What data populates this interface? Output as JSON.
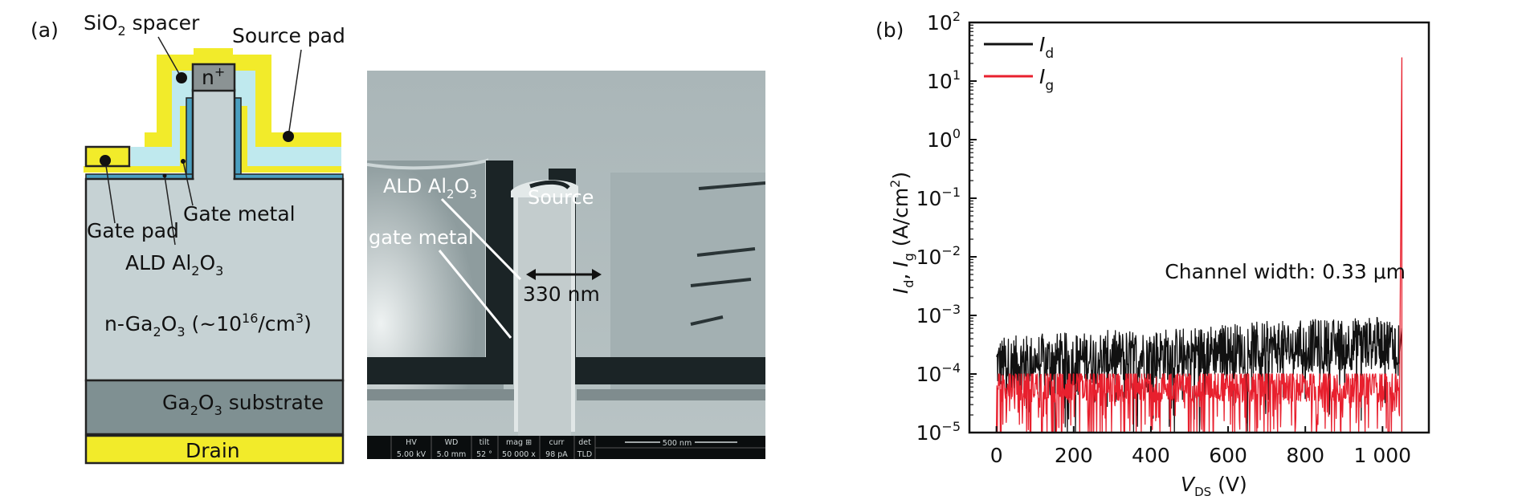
{
  "panel_a": {
    "label": "(a)",
    "schematic": {
      "sio2_spacer": {
        "a": "SiO",
        "sub": "2",
        "b": " spacer"
      },
      "source_pad": "Source pad",
      "n_plus": {
        "a": "n",
        "sup": "+"
      },
      "gate_metal": "Gate metal",
      "gate_pad": "Gate pad",
      "ald": {
        "a": "ALD Al",
        "sub1": "2",
        "b": "O",
        "sub2": "3"
      },
      "drift": {
        "a": "n-Ga",
        "sub1": "2",
        "b": "O",
        "sub2": "3",
        "c": " (~10",
        "sup1": "16",
        "d": "/cm",
        "sup2": "3",
        "e": ")"
      },
      "substrate": {
        "a": "Ga",
        "sub1": "2",
        "b": "O",
        "sub2": "3",
        "c": " substrate"
      },
      "drain": "Drain",
      "colors": {
        "metal": "#f2eb2a",
        "sio2": "#bfe9ee",
        "ga2o3": "#c6d2d4",
        "substrate": "#7f9092",
        "n_plus": "#8b9394",
        "al2o3": "#4a9fc0"
      }
    },
    "sem": {
      "ald": {
        "a": "ALD Al",
        "sub1": "2",
        "b": "O",
        "sub2": "3"
      },
      "source": "Source",
      "gate_metal": "gate metal",
      "width": "330 nm",
      "info_bar": {
        "headers": [
          "HV",
          "WD",
          "tilt",
          "mag ⊞",
          "curr",
          "det"
        ],
        "values": [
          "5.00 kV",
          "5.0 mm",
          "52 °",
          "50 000 x",
          "98 pA",
          "TLD"
        ],
        "scale": "500 nm"
      }
    }
  },
  "panel_b": {
    "label": "(b)"
  },
  "chart_data": {
    "type": "line",
    "title": "",
    "xlabel": {
      "a": "V",
      "sub": "DS",
      "b": " (V)"
    },
    "ylabel": {
      "a": "I",
      "sub1": "d",
      "b": ", ",
      "c": "I",
      "sub2": "g",
      "d": " (A/cm",
      "sup": "2",
      "e": ")"
    },
    "xlim": [
      -70,
      1120
    ],
    "ylim": [
      1e-05,
      100
    ],
    "yscale": "log",
    "grid": false,
    "legend_position": "top-left",
    "x_ticks": [
      0,
      200,
      400,
      600,
      800,
      1000
    ],
    "x_tick_labels": [
      "0",
      "200",
      "400",
      "600",
      "800",
      "1 000"
    ],
    "y_ticks": [
      {
        "base": "10",
        "exp": "2"
      },
      {
        "base": "10",
        "exp": "1"
      },
      {
        "base": "10",
        "exp": "0"
      },
      {
        "base": "10",
        "exp": "−1"
      },
      {
        "base": "10",
        "exp": "−2"
      },
      {
        "base": "10",
        "exp": "−3"
      },
      {
        "base": "10",
        "exp": "−4"
      },
      {
        "base": "10",
        "exp": "−5"
      }
    ],
    "annotation": "Channel width: 0.33 μm",
    "x": [
      0,
      50,
      100,
      150,
      200,
      250,
      300,
      350,
      400,
      450,
      500,
      550,
      600,
      650,
      700,
      750,
      800,
      850,
      900,
      950,
      1000,
      1050
    ],
    "series": [
      {
        "name": "I",
        "name_sub": "d",
        "color": "#111111",
        "values": [
          0.00015,
          0.00016,
          0.00017,
          0.00018,
          0.00018,
          0.00019,
          0.0002,
          0.0002,
          0.00021,
          0.00022,
          0.00023,
          0.00025,
          0.00026,
          0.00027,
          0.00028,
          0.00029,
          0.0003,
          0.00031,
          0.00032,
          0.00033,
          0.00034,
          0.0006
        ]
      },
      {
        "name": "I",
        "name_sub": "g",
        "color": "#e8202e",
        "values": [
          5e-05,
          5e-05,
          5e-05,
          5e-05,
          5e-05,
          5e-05,
          5e-05,
          5e-05,
          5e-05,
          5e-05,
          5e-05,
          5e-05,
          5e-05,
          5e-05,
          5e-05,
          5e-05,
          5e-05,
          5e-05,
          5e-05,
          5e-05,
          5e-05,
          25
        ]
      }
    ]
  }
}
